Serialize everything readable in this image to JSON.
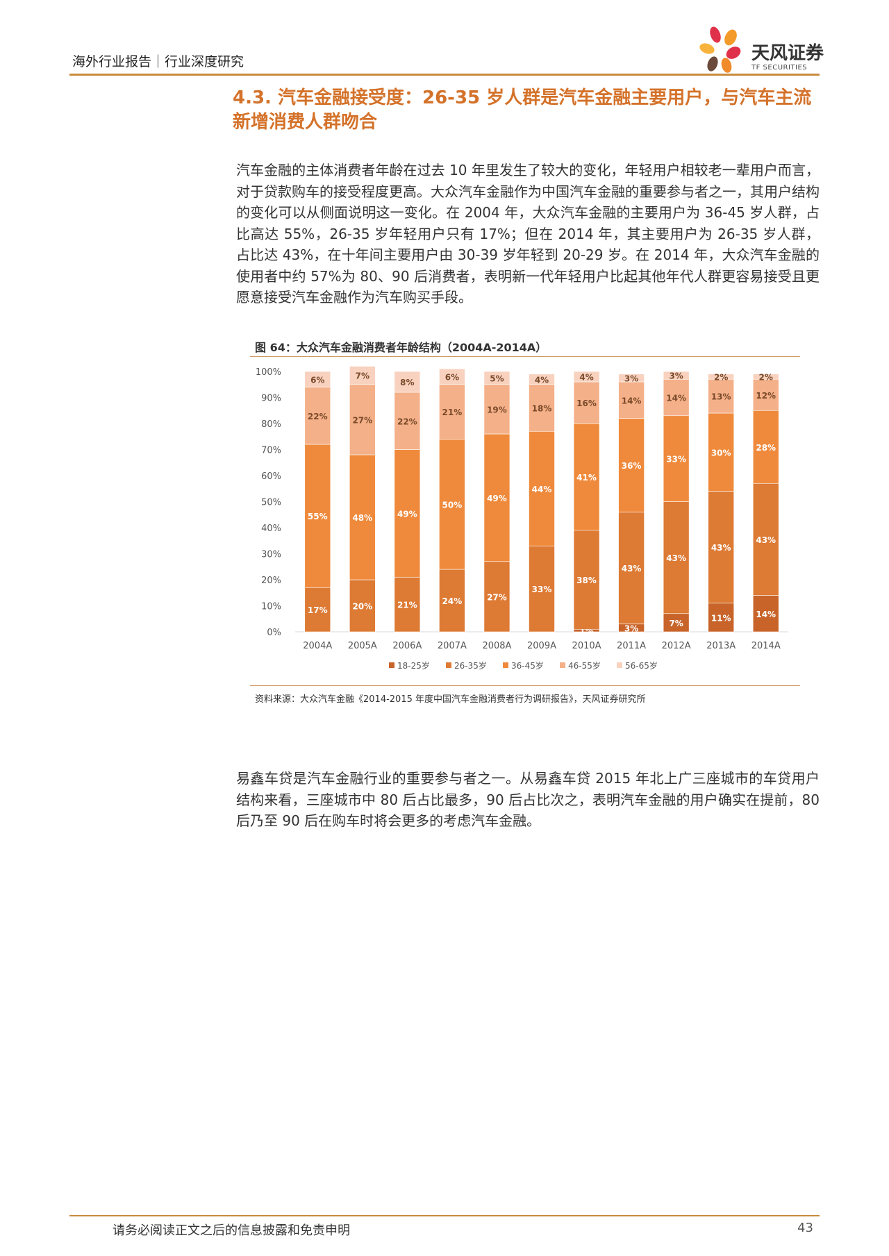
{
  "header": {
    "title": "海外行业报告｜行业深度研究",
    "logo_cn": "天风证券",
    "logo_en": "TF SECURITIES"
  },
  "section": {
    "title": "4.3. 汽车金融接受度：26-35 岁人群是汽车金融主要用户，与汽车主流新增消费人群吻合"
  },
  "body": {
    "para1": "汽车金融的主体消费者年龄在过去 10 年里发生了较大的变化，年轻用户相较老一辈用户而言，对于贷款购车的接受程度更高。大众汽车金融作为中国汽车金融的重要参与者之一，其用户结构的变化可以从侧面说明这一变化。在 2004 年，大众汽车金融的主要用户为 36-45 岁人群，占比高达 55%，26-35 岁年轻用户只有 17%；但在 2014 年，其主要用户为 26-35 岁人群，占比达 43%，在十年间主要用户由 30-39 岁年轻到 20-29 岁。在 2014 年，大众汽车金融的使用者中约 57%为 80、90 后消费者，表明新一代年轻用户比起其他年代人群更容易接受且更愿意接受汽车金融作为汽车购买手段。",
    "para2": "易鑫车贷是汽车金融行业的重要参与者之一。从易鑫车贷 2015 年北上广三座城市的车贷用户结构来看，三座城市中 80 后占比最多，90 后占比次之，表明汽车金融的用户确实在提前，80 后乃至 90 后在购车时将会更多的考虑汽车金融。"
  },
  "figure": {
    "title": "图 64：大众汽车金融消费者年龄结构（2004A-2014A）",
    "source": "资料来源：大众汽车金融《2014-2015 年度中国汽车金融消费者行为调研报告》，天风证券研究所"
  },
  "chart_data": {
    "type": "bar",
    "stacked": true,
    "categories": [
      "2004A",
      "2005A",
      "2006A",
      "2007A",
      "2008A",
      "2009A",
      "2010A",
      "2011A",
      "2012A",
      "2013A",
      "2014A"
    ],
    "ylim": [
      0,
      100
    ],
    "yticks": [
      "0%",
      "10%",
      "20%",
      "30%",
      "40%",
      "50%",
      "60%",
      "70%",
      "80%",
      "90%",
      "100%"
    ],
    "legend_position": "bottom",
    "series": [
      {
        "name": "18-25岁",
        "color": "#c8642a",
        "values": [
          0,
          0,
          0,
          0,
          0,
          0,
          1,
          3,
          7,
          11,
          14
        ],
        "labels": [
          "",
          "",
          "",
          "",
          "",
          "",
          "1%",
          "3%",
          "7%",
          "11%",
          "14%"
        ]
      },
      {
        "name": "26-35岁",
        "color": "#dd7a34",
        "values": [
          17,
          20,
          21,
          24,
          27,
          33,
          38,
          43,
          43,
          43,
          43
        ],
        "labels": [
          "17%",
          "20%",
          "21%",
          "24%",
          "27%",
          "33%",
          "38%",
          "43%",
          "43%",
          "43%",
          "43%"
        ]
      },
      {
        "name": "36-45岁",
        "color": "#ef8a3c",
        "values": [
          55,
          48,
          49,
          50,
          49,
          44,
          41,
          36,
          33,
          30,
          28
        ],
        "labels": [
          "55%",
          "48%",
          "49%",
          "50%",
          "49%",
          "44%",
          "41%",
          "36%",
          "33%",
          "30%",
          "28%"
        ]
      },
      {
        "name": "46-55岁",
        "color": "#f4b088",
        "values": [
          22,
          27,
          22,
          21,
          19,
          18,
          16,
          14,
          14,
          13,
          12
        ],
        "labels": [
          "22%",
          "27%",
          "22%",
          "21%",
          "19%",
          "18%",
          "16%",
          "14%",
          "14%",
          "13%",
          "12%"
        ]
      },
      {
        "name": "56-65岁",
        "color": "#f8d2bf",
        "values": [
          6,
          7,
          8,
          6,
          5,
          4,
          4,
          3,
          3,
          2,
          2
        ],
        "labels": [
          "6%",
          "7%",
          "8%",
          "6%",
          "5%",
          "4%",
          "4%",
          "3%",
          "3%",
          "2%",
          "2%"
        ]
      }
    ]
  },
  "footer": {
    "disclaimer": "请务必阅读正文之后的信息披露和免责申明",
    "page": "43"
  }
}
